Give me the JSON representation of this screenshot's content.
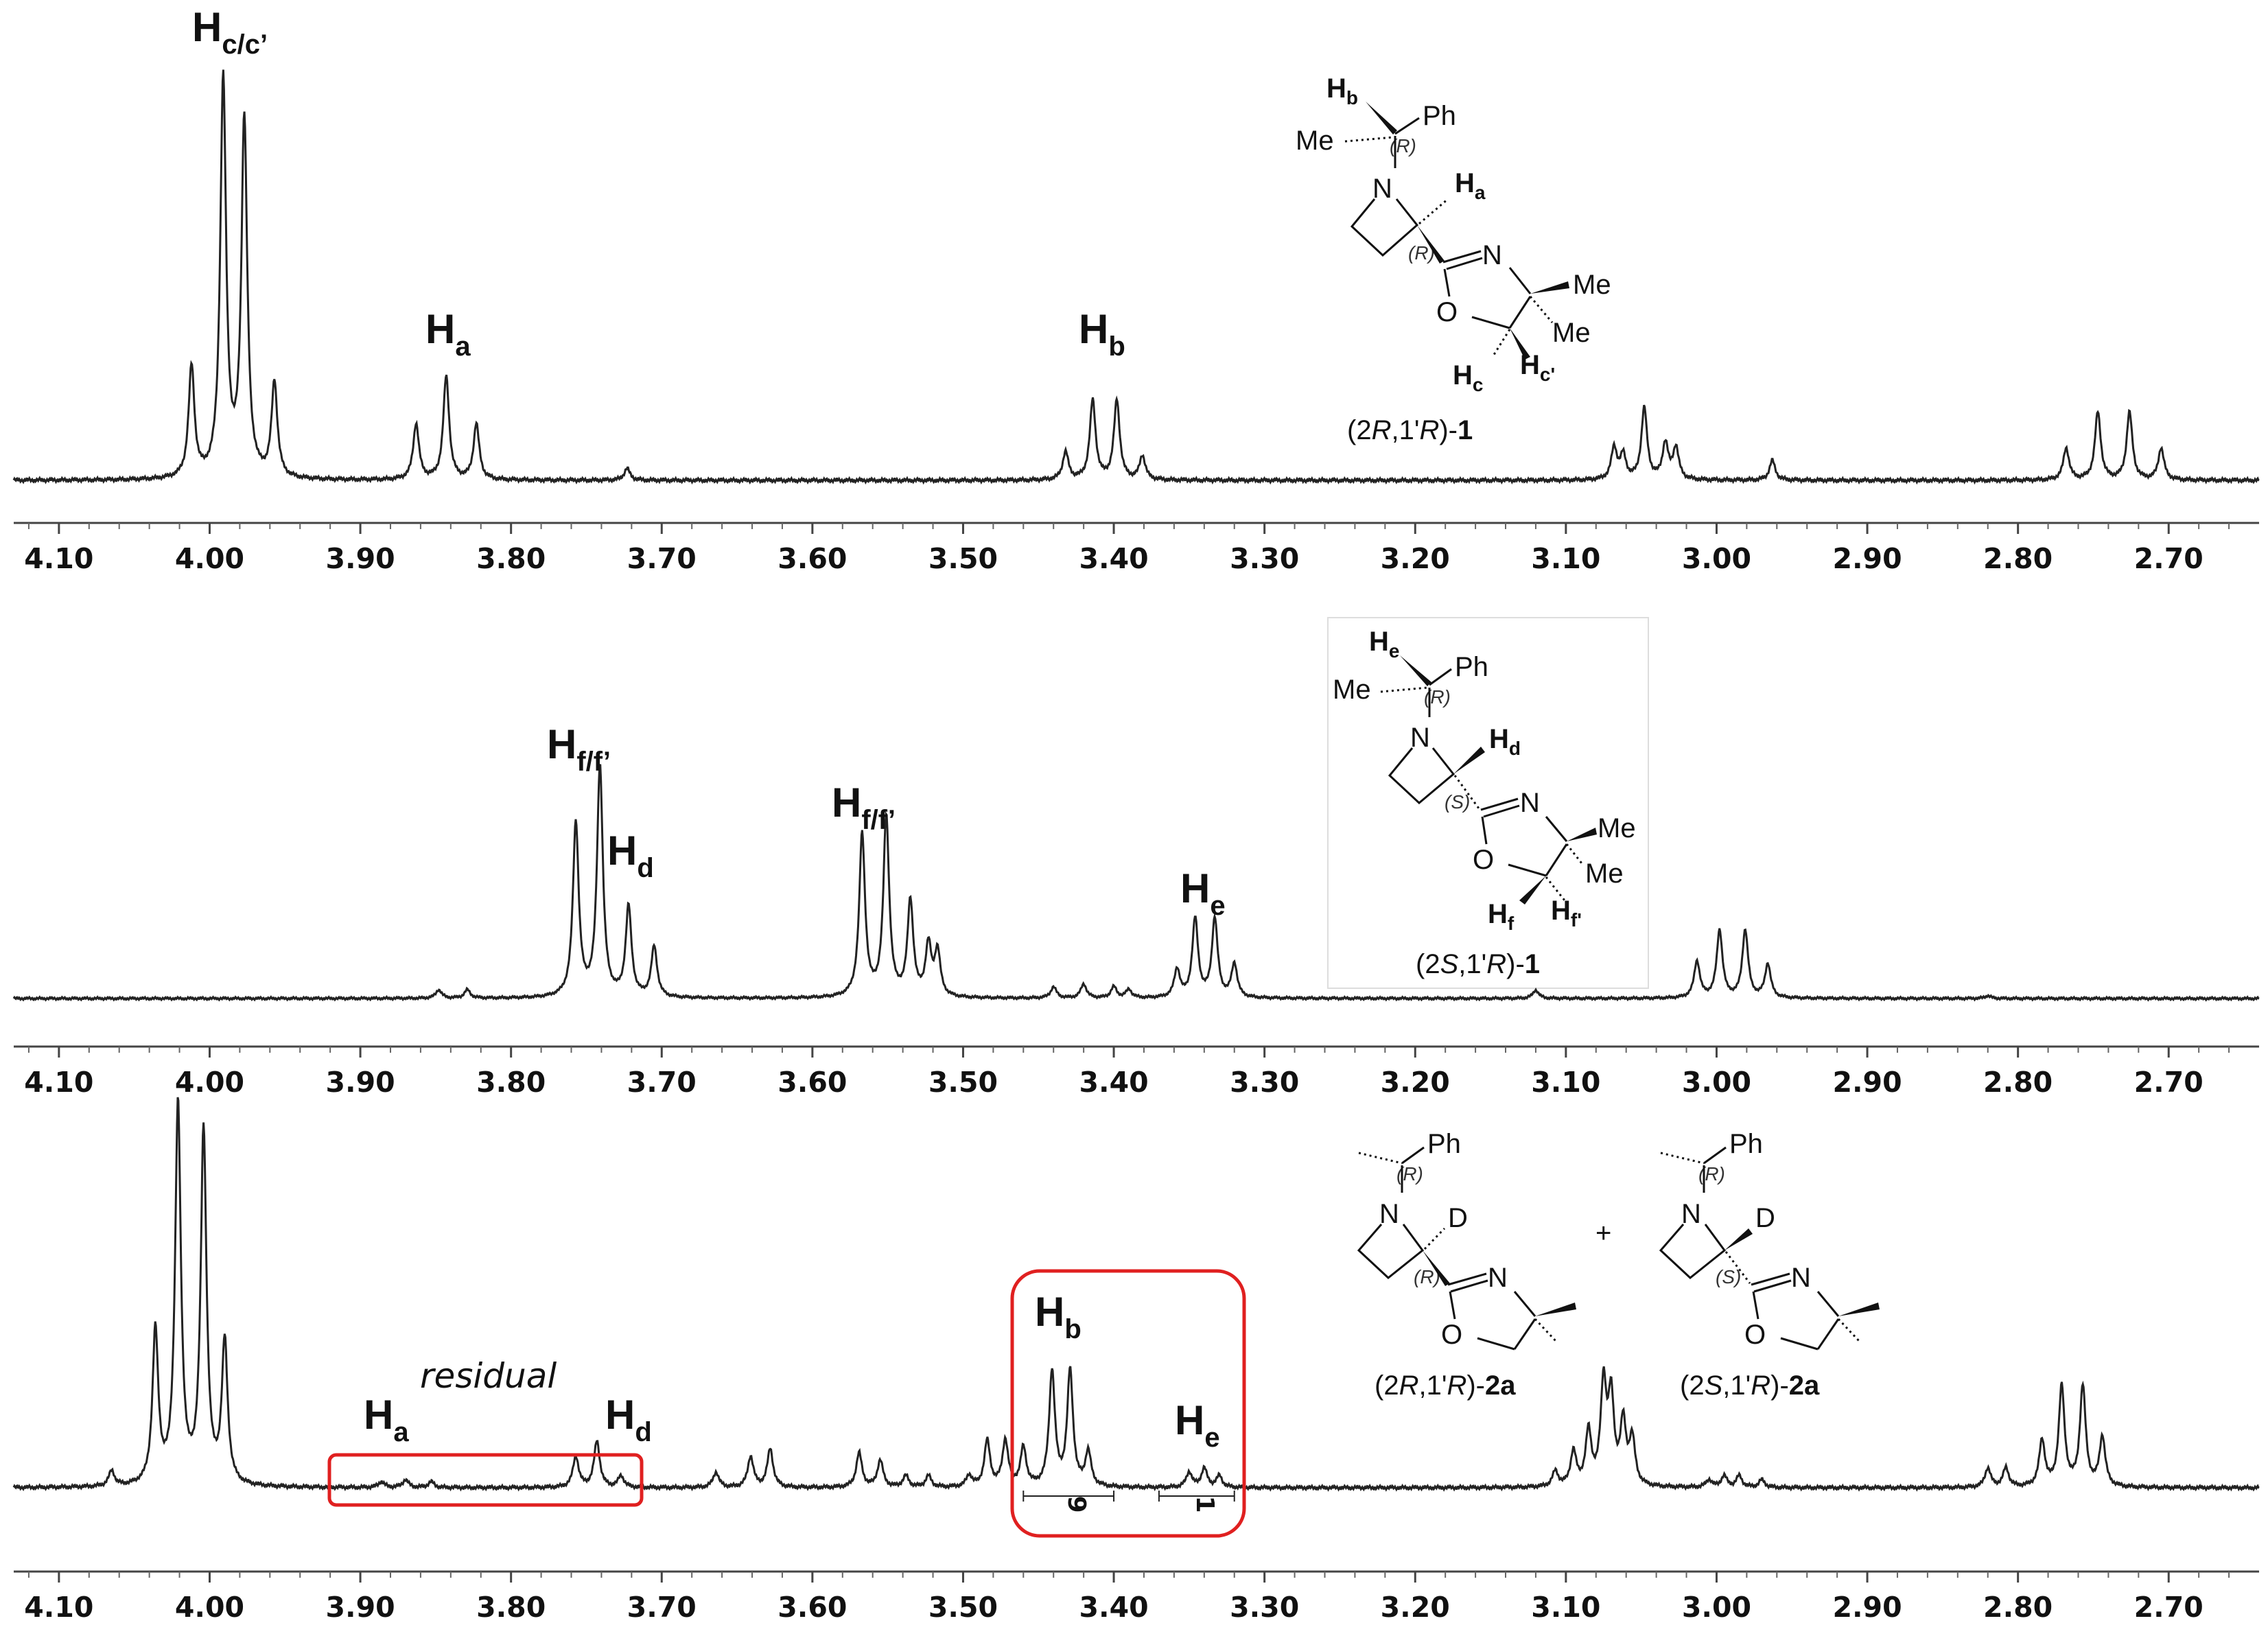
{
  "chart_data": [
    {
      "type": "line",
      "panel": "top",
      "xlim": [
        4.13,
        2.64
      ],
      "x_reversed": true,
      "ticks": [
        "4.10",
        "4.00",
        "3.90",
        "3.80",
        "3.70",
        "3.60",
        "3.50",
        "3.40",
        "3.30",
        "3.20",
        "3.10",
        "3.00",
        "2.90",
        "2.80",
        "2.70"
      ],
      "peaks": [
        {
          "x": 4.012,
          "h": 0.28
        },
        {
          "x": 3.991,
          "h": 1.0
        },
        {
          "x": 3.977,
          "h": 0.9
        },
        {
          "x": 3.957,
          "h": 0.24
        },
        {
          "x": 3.863,
          "h": 0.14
        },
        {
          "x": 3.843,
          "h": 0.26
        },
        {
          "x": 3.823,
          "h": 0.14
        },
        {
          "x": 3.723,
          "h": 0.03
        },
        {
          "x": 3.432,
          "h": 0.07
        },
        {
          "x": 3.414,
          "h": 0.2
        },
        {
          "x": 3.398,
          "h": 0.2
        },
        {
          "x": 3.381,
          "h": 0.06
        },
        {
          "x": 3.068,
          "h": 0.08
        },
        {
          "x": 3.062,
          "h": 0.06
        },
        {
          "x": 3.048,
          "h": 0.18
        },
        {
          "x": 3.034,
          "h": 0.09
        },
        {
          "x": 3.027,
          "h": 0.08
        },
        {
          "x": 2.963,
          "h": 0.05
        },
        {
          "x": 2.768,
          "h": 0.08
        },
        {
          "x": 2.747,
          "h": 0.17
        },
        {
          "x": 2.726,
          "h": 0.17
        },
        {
          "x": 2.705,
          "h": 0.08
        }
      ],
      "annotations": [
        {
          "main": "H",
          "sub": "c/c’",
          "x": 3.97
        },
        {
          "main": "H",
          "sub": "a",
          "x": 3.85
        },
        {
          "main": "H",
          "sub": "b",
          "x": 3.41
        }
      ],
      "structure": {
        "hb": "H",
        "hb_sub": "b",
        "ph": "Ph",
        "me": "Me",
        "r1": "(R)",
        "n": "N",
        "ha": "H",
        "ha_sub": "a",
        "r2": "(R)",
        "n2": "N",
        "me2": "Me",
        "o": "O",
        "me3": "Me",
        "hc": "H",
        "hc_sub": "c",
        "hc2": "H",
        "hc2_sub": "c'",
        "caption_open": "(2",
        "caption_r": "R",
        "caption_mid": ",1'",
        "caption_r2": "R",
        "caption_close": ")-",
        "caption_num": "1"
      }
    },
    {
      "type": "line",
      "panel": "middle",
      "xlim": [
        4.13,
        2.64
      ],
      "x_reversed": true,
      "ticks": [
        "4.10",
        "4.00",
        "3.90",
        "3.80",
        "3.70",
        "3.60",
        "3.50",
        "3.40",
        "3.30",
        "3.20",
        "3.10",
        "3.00",
        "2.90",
        "2.80",
        "2.70"
      ],
      "peaks": [
        {
          "x": 3.848,
          "h": 0.03
        },
        {
          "x": 3.829,
          "h": 0.03
        },
        {
          "x": 3.757,
          "h": 0.62
        },
        {
          "x": 3.741,
          "h": 0.82
        },
        {
          "x": 3.722,
          "h": 0.32
        },
        {
          "x": 3.705,
          "h": 0.18
        },
        {
          "x": 3.567,
          "h": 0.58
        },
        {
          "x": 3.551,
          "h": 0.64
        },
        {
          "x": 3.535,
          "h": 0.34
        },
        {
          "x": 3.523,
          "h": 0.18
        },
        {
          "x": 3.517,
          "h": 0.16
        },
        {
          "x": 3.44,
          "h": 0.04
        },
        {
          "x": 3.42,
          "h": 0.05
        },
        {
          "x": 3.4,
          "h": 0.04
        },
        {
          "x": 3.39,
          "h": 0.03
        },
        {
          "x": 3.358,
          "h": 0.1
        },
        {
          "x": 3.346,
          "h": 0.28
        },
        {
          "x": 3.333,
          "h": 0.28
        },
        {
          "x": 3.32,
          "h": 0.12
        },
        {
          "x": 3.12,
          "h": 0.03
        },
        {
          "x": 3.013,
          "h": 0.13
        },
        {
          "x": 2.998,
          "h": 0.24
        },
        {
          "x": 2.981,
          "h": 0.24
        },
        {
          "x": 2.966,
          "h": 0.12
        },
        {
          "x": 2.82,
          "h": 0.01
        }
      ],
      "annotations": [
        {
          "main": "H",
          "sub": "f/f’",
          "x": 3.76
        },
        {
          "main": "H",
          "sub": "d",
          "x": 3.71
        },
        {
          "main": "H",
          "sub": "f/f’",
          "x": 3.56
        },
        {
          "main": "H",
          "sub": "e",
          "x": 3.34
        }
      ],
      "structure": {
        "he": "H",
        "he_sub": "e",
        "ph": "Ph",
        "me": "Me",
        "r1": "(R)",
        "n": "N",
        "hd": "H",
        "hd_sub": "d",
        "s2": "(S)",
        "n2": "N",
        "me2": "Me",
        "o": "O",
        "me3": "Me",
        "hf": "H",
        "hf_sub": "f",
        "hf2": "H",
        "hf2_sub": "f'",
        "caption_open": "(2",
        "caption_s": "S",
        "caption_mid": ",1'",
        "caption_r2": "R",
        "caption_close": ")-",
        "caption_num": "1"
      }
    },
    {
      "type": "line",
      "panel": "bottom",
      "xlim": [
        4.13,
        2.64
      ],
      "x_reversed": true,
      "ticks": [
        "4.10",
        "4.00",
        "3.90",
        "3.80",
        "3.70",
        "3.60",
        "3.50",
        "3.40",
        "3.30",
        "3.20",
        "3.10",
        "3.00",
        "2.90",
        "2.80",
        "2.70"
      ],
      "peaks": [
        {
          "x": 4.065,
          "h": 0.04
        },
        {
          "x": 4.036,
          "h": 0.4
        },
        {
          "x": 4.021,
          "h": 0.99
        },
        {
          "x": 4.004,
          "h": 0.92
        },
        {
          "x": 3.99,
          "h": 0.37
        },
        {
          "x": 3.886,
          "h": 0.015
        },
        {
          "x": 3.87,
          "h": 0.02
        },
        {
          "x": 3.853,
          "h": 0.015
        },
        {
          "x": 3.757,
          "h": 0.08
        },
        {
          "x": 3.743,
          "h": 0.12
        },
        {
          "x": 3.727,
          "h": 0.03
        },
        {
          "x": 3.664,
          "h": 0.04
        },
        {
          "x": 3.641,
          "h": 0.08
        },
        {
          "x": 3.628,
          "h": 0.1
        },
        {
          "x": 3.569,
          "h": 0.09
        },
        {
          "x": 3.555,
          "h": 0.07
        },
        {
          "x": 3.538,
          "h": 0.03
        },
        {
          "x": 3.523,
          "h": 0.03
        },
        {
          "x": 3.496,
          "h": 0.03
        },
        {
          "x": 3.484,
          "h": 0.12
        },
        {
          "x": 3.472,
          "h": 0.12
        },
        {
          "x": 3.46,
          "h": 0.1
        },
        {
          "x": 3.441,
          "h": 0.3
        },
        {
          "x": 3.429,
          "h": 0.3
        },
        {
          "x": 3.417,
          "h": 0.09
        },
        {
          "x": 3.35,
          "h": 0.04
        },
        {
          "x": 3.34,
          "h": 0.05
        },
        {
          "x": 3.33,
          "h": 0.03
        },
        {
          "x": 3.107,
          "h": 0.04
        },
        {
          "x": 3.095,
          "h": 0.09
        },
        {
          "x": 3.085,
          "h": 0.14
        },
        {
          "x": 3.075,
          "h": 0.26
        },
        {
          "x": 3.07,
          "h": 0.22
        },
        {
          "x": 3.062,
          "h": 0.16
        },
        {
          "x": 3.056,
          "h": 0.12
        },
        {
          "x": 3.005,
          "h": 0.02
        },
        {
          "x": 2.995,
          "h": 0.03
        },
        {
          "x": 2.985,
          "h": 0.03
        },
        {
          "x": 2.97,
          "h": 0.02
        },
        {
          "x": 2.82,
          "h": 0.05
        },
        {
          "x": 2.808,
          "h": 0.05
        },
        {
          "x": 2.784,
          "h": 0.12
        },
        {
          "x": 2.771,
          "h": 0.26
        },
        {
          "x": 2.757,
          "h": 0.26
        },
        {
          "x": 2.744,
          "h": 0.13
        }
      ],
      "annotations": [
        {
          "main": "H",
          "sub": "a",
          "x": 3.87
        },
        {
          "main": "H",
          "sub": "d",
          "x": 3.74
        },
        {
          "main": "H",
          "sub": "b",
          "x": 3.43
        },
        {
          "main": "H",
          "sub": "e",
          "x": 3.34
        }
      ],
      "residual_label": "residual",
      "integrals": [
        {
          "label": "9",
          "from": 3.46,
          "to": 3.4
        },
        {
          "label": "1",
          "from": 3.37,
          "to": 3.32
        }
      ],
      "highlight_color": "#e02020",
      "structures": {
        "left": {
          "ph": "Ph",
          "r1": "(R)",
          "n": "N",
          "d": "D",
          "r2": "(R)",
          "n2": "N",
          "o": "O",
          "caption_open": "(2",
          "caption_r": "R",
          "caption_mid": ",1'",
          "caption_r2": "R",
          "caption_close": ")-",
          "caption_num": "2a"
        },
        "plus": "+",
        "right": {
          "ph": "Ph",
          "r1": "(R)",
          "n": "N",
          "d": "D",
          "s2": "(S)",
          "n2": "N",
          "o": "O",
          "caption_open": "(2",
          "caption_s": "S",
          "caption_mid": ",1'",
          "caption_r2": "R",
          "caption_close": ")-",
          "caption_num": "2a"
        }
      }
    }
  ]
}
